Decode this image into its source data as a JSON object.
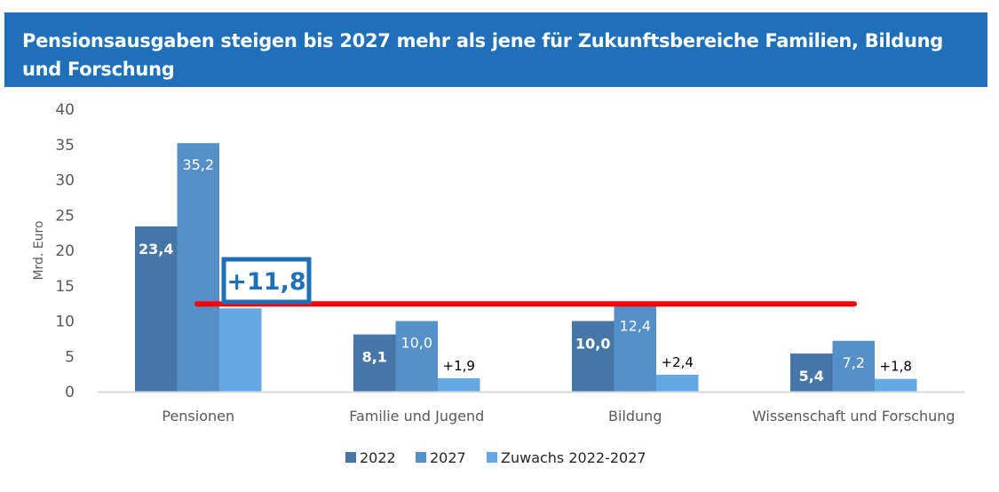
{
  "header": {
    "title": "Pensionsausgaben steigen bis 2027 mehr als jene für Zukunftsbereiche Familien, Bildung und Forschung",
    "background_color": "#1f70b8"
  },
  "chart_data": {
    "type": "bar",
    "title": "Pensionsausgaben steigen bis 2027 mehr als jene für Zukunftsbereiche Familien, Bildung und Forschung",
    "xlabel": "",
    "ylabel": "Mrd. Euro",
    "ylim": [
      0,
      40
    ],
    "yticks": [
      0,
      5,
      10,
      15,
      20,
      25,
      30,
      35,
      40
    ],
    "grid": false,
    "legend_position": "bottom",
    "categories": [
      "Pensionen",
      "Familie und Jugend",
      "Bildung",
      "Wissenschaft und Forschung"
    ],
    "series": [
      {
        "name": "2022",
        "color": "#4676a6",
        "values": [
          23.4,
          8.1,
          10.0,
          5.4
        ],
        "labels": [
          "23,4",
          "8,1",
          "10,0",
          "5,4"
        ]
      },
      {
        "name": "2027",
        "color": "#5690c8",
        "values": [
          35.2,
          10.0,
          12.4,
          7.2
        ],
        "labels": [
          "35,2",
          "10,0",
          "12,4",
          "7,2"
        ]
      },
      {
        "name": "Zuwachs 2022-2027",
        "color": "#64a8e4",
        "values": [
          11.8,
          1.9,
          2.4,
          1.8
        ],
        "labels": [
          "",
          "+1,9",
          "+2,4",
          "+1,8"
        ]
      }
    ],
    "annotations": [
      {
        "type": "box-label",
        "text": "+11,8",
        "color": "#1f70b8",
        "category": "Pensionen"
      },
      {
        "type": "horizontal-line",
        "value": 11.8,
        "color": "#ff0000",
        "from_category": "Pensionen",
        "to_category": "Wissenschaft und Forschung"
      }
    ]
  }
}
